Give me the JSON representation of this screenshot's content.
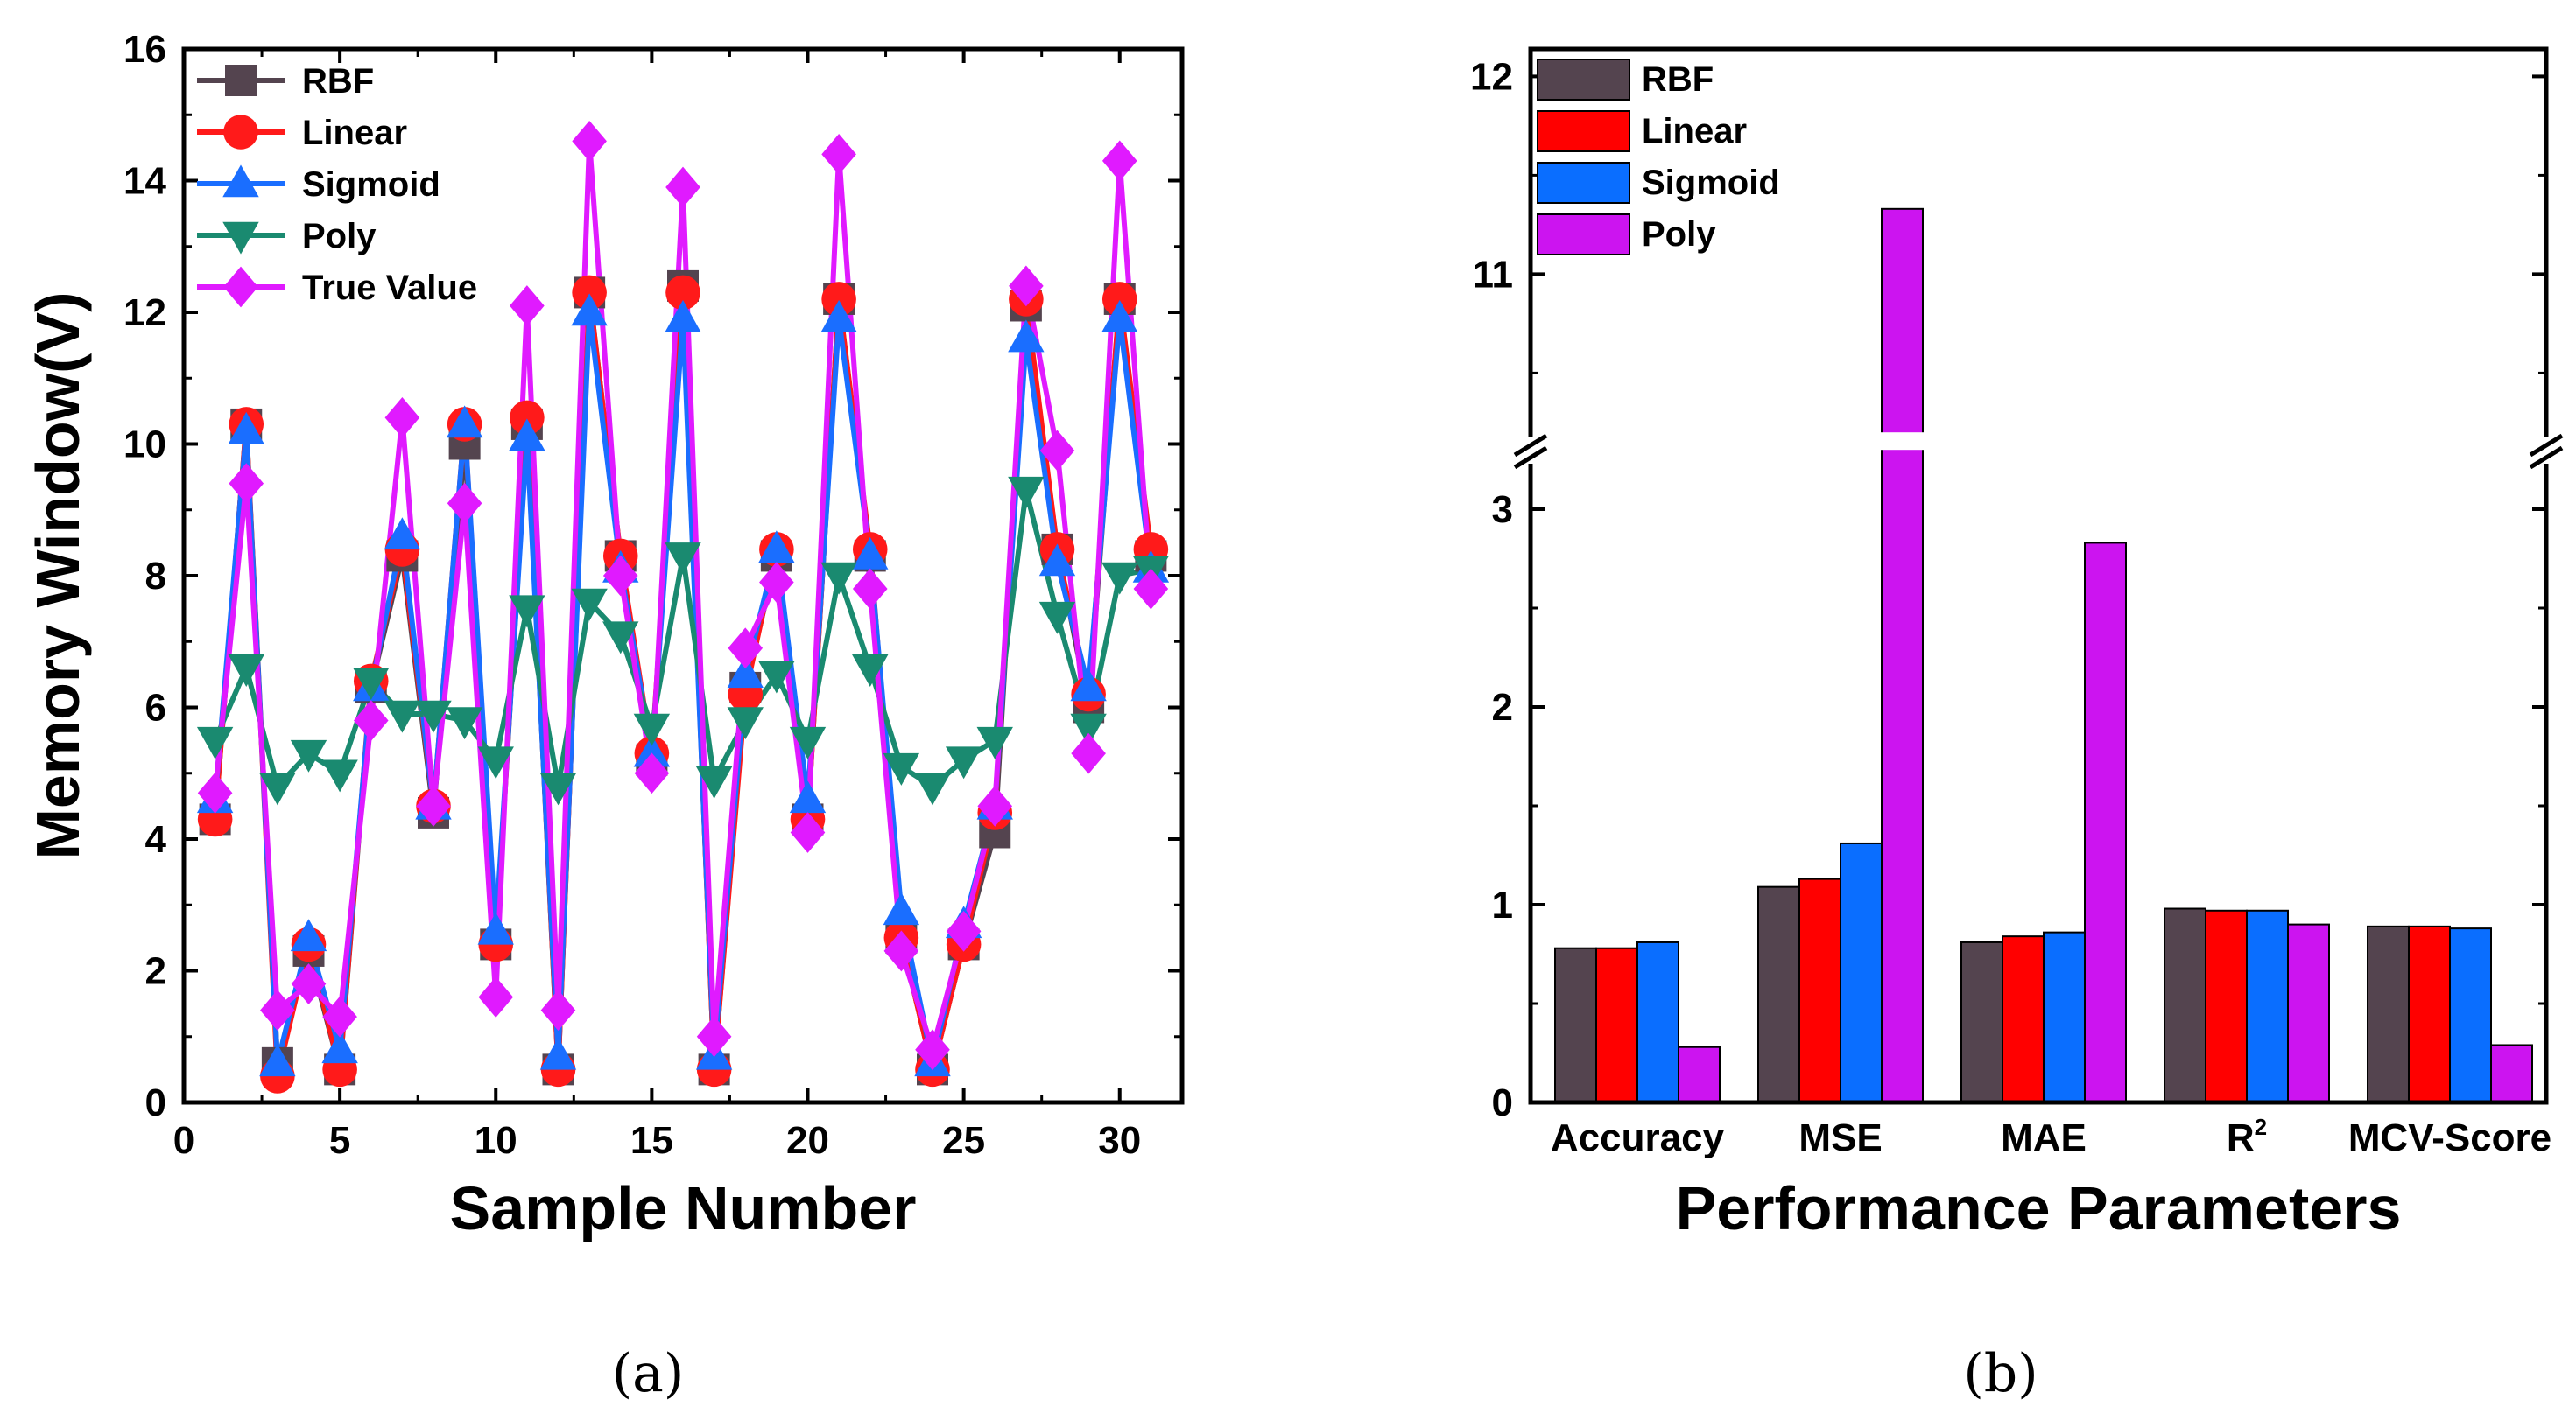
{
  "chart_data": [
    {
      "type": "line",
      "panel_label": "(a)",
      "xlabel": "Sample Number",
      "ylabel": "Memory Window(V)",
      "xlim": [
        0,
        32
      ],
      "ylim": [
        0,
        16
      ],
      "xticks": [
        "0",
        "5",
        "10",
        "15",
        "20",
        "25",
        "30"
      ],
      "yticks": [
        "0",
        "2",
        "4",
        "6",
        "8",
        "10",
        "12",
        "14",
        "16"
      ],
      "x": [
        1,
        2,
        3,
        4,
        5,
        6,
        7,
        8,
        9,
        10,
        11,
        12,
        13,
        14,
        15,
        16,
        17,
        18,
        19,
        20,
        21,
        22,
        23,
        24,
        25,
        26,
        27,
        28,
        29,
        30,
        31
      ],
      "series": [
        {
          "name": "RBF",
          "color": "#54444f",
          "marker": "square",
          "values": [
            4.3,
            10.3,
            0.6,
            2.3,
            0.5,
            6.3,
            8.3,
            4.4,
            10.0,
            2.4,
            10.3,
            0.5,
            12.3,
            8.3,
            5.2,
            12.4,
            0.5,
            6.3,
            8.3,
            4.3,
            12.2,
            8.3,
            2.5,
            0.5,
            2.4,
            4.1,
            12.1,
            8.4,
            6.0,
            12.2,
            8.3
          ]
        },
        {
          "name": "Linear",
          "color": "#ff1a1a",
          "marker": "circle",
          "values": [
            4.3,
            10.3,
            0.4,
            2.4,
            0.5,
            6.4,
            8.4,
            4.5,
            10.3,
            2.4,
            10.4,
            0.5,
            12.3,
            8.3,
            5.3,
            12.3,
            0.5,
            6.2,
            8.4,
            4.3,
            12.2,
            8.4,
            2.5,
            0.5,
            2.4,
            4.4,
            12.2,
            8.4,
            6.2,
            12.2,
            8.4
          ]
        },
        {
          "name": "Sigmoid",
          "color": "#1a6eff",
          "marker": "triangle-up",
          "values": [
            4.6,
            10.2,
            0.6,
            2.5,
            0.8,
            6.3,
            8.6,
            4.5,
            10.3,
            2.6,
            10.1,
            0.7,
            12.0,
            8.1,
            5.3,
            11.9,
            0.7,
            6.5,
            8.4,
            4.6,
            11.9,
            8.3,
            2.9,
            0.6,
            2.7,
            4.5,
            11.6,
            8.2,
            6.3,
            11.9,
            8.1
          ]
        },
        {
          "name": "Poly",
          "color": "#1a8a70",
          "marker": "triangle-down",
          "values": [
            5.5,
            6.6,
            4.8,
            5.3,
            5.0,
            6.4,
            5.9,
            5.9,
            5.8,
            5.2,
            7.5,
            4.8,
            7.6,
            7.1,
            5.7,
            8.3,
            4.9,
            5.8,
            6.5,
            5.5,
            8.0,
            6.6,
            5.1,
            4.8,
            5.2,
            5.5,
            9.3,
            7.4,
            5.7,
            8.0,
            8.1
          ]
        },
        {
          "name": "True Value",
          "color": "#e01aff",
          "marker": "diamond",
          "values": [
            4.7,
            9.4,
            1.4,
            1.8,
            1.3,
            5.8,
            10.4,
            4.5,
            9.1,
            1.6,
            12.1,
            1.4,
            14.6,
            8.0,
            5.0,
            13.9,
            1.0,
            6.9,
            7.9,
            4.1,
            14.4,
            7.8,
            2.3,
            0.8,
            2.6,
            4.5,
            12.4,
            9.9,
            5.3,
            14.3,
            7.8
          ]
        }
      ]
    },
    {
      "type": "bar",
      "panel_label": "(b)",
      "xlabel": "Performance Parameters",
      "ylabel": "",
      "categories": [
        "Accuracy",
        "MSE",
        "MAE",
        "R",
        "MCV-Score"
      ],
      "superscript_R": "2",
      "ylim": [
        0,
        12
      ],
      "axis_break": [
        3.3,
        10.2
      ],
      "yticks": [
        "0",
        "1",
        "2",
        "3",
        "11",
        "12"
      ],
      "series": [
        {
          "name": "RBF",
          "color": "#54444f",
          "values": [
            0.78,
            1.09,
            0.81,
            0.98,
            0.89
          ]
        },
        {
          "name": "Linear",
          "color": "#ff0000",
          "values": [
            0.78,
            1.13,
            0.84,
            0.97,
            0.89
          ]
        },
        {
          "name": "Sigmoid",
          "color": "#0a6eff",
          "values": [
            0.81,
            1.31,
            0.86,
            0.97,
            0.88
          ]
        },
        {
          "name": "Poly",
          "color": "#cc14f0",
          "values": [
            0.28,
            11.33,
            2.83,
            0.9,
            0.29
          ]
        }
      ]
    }
  ]
}
